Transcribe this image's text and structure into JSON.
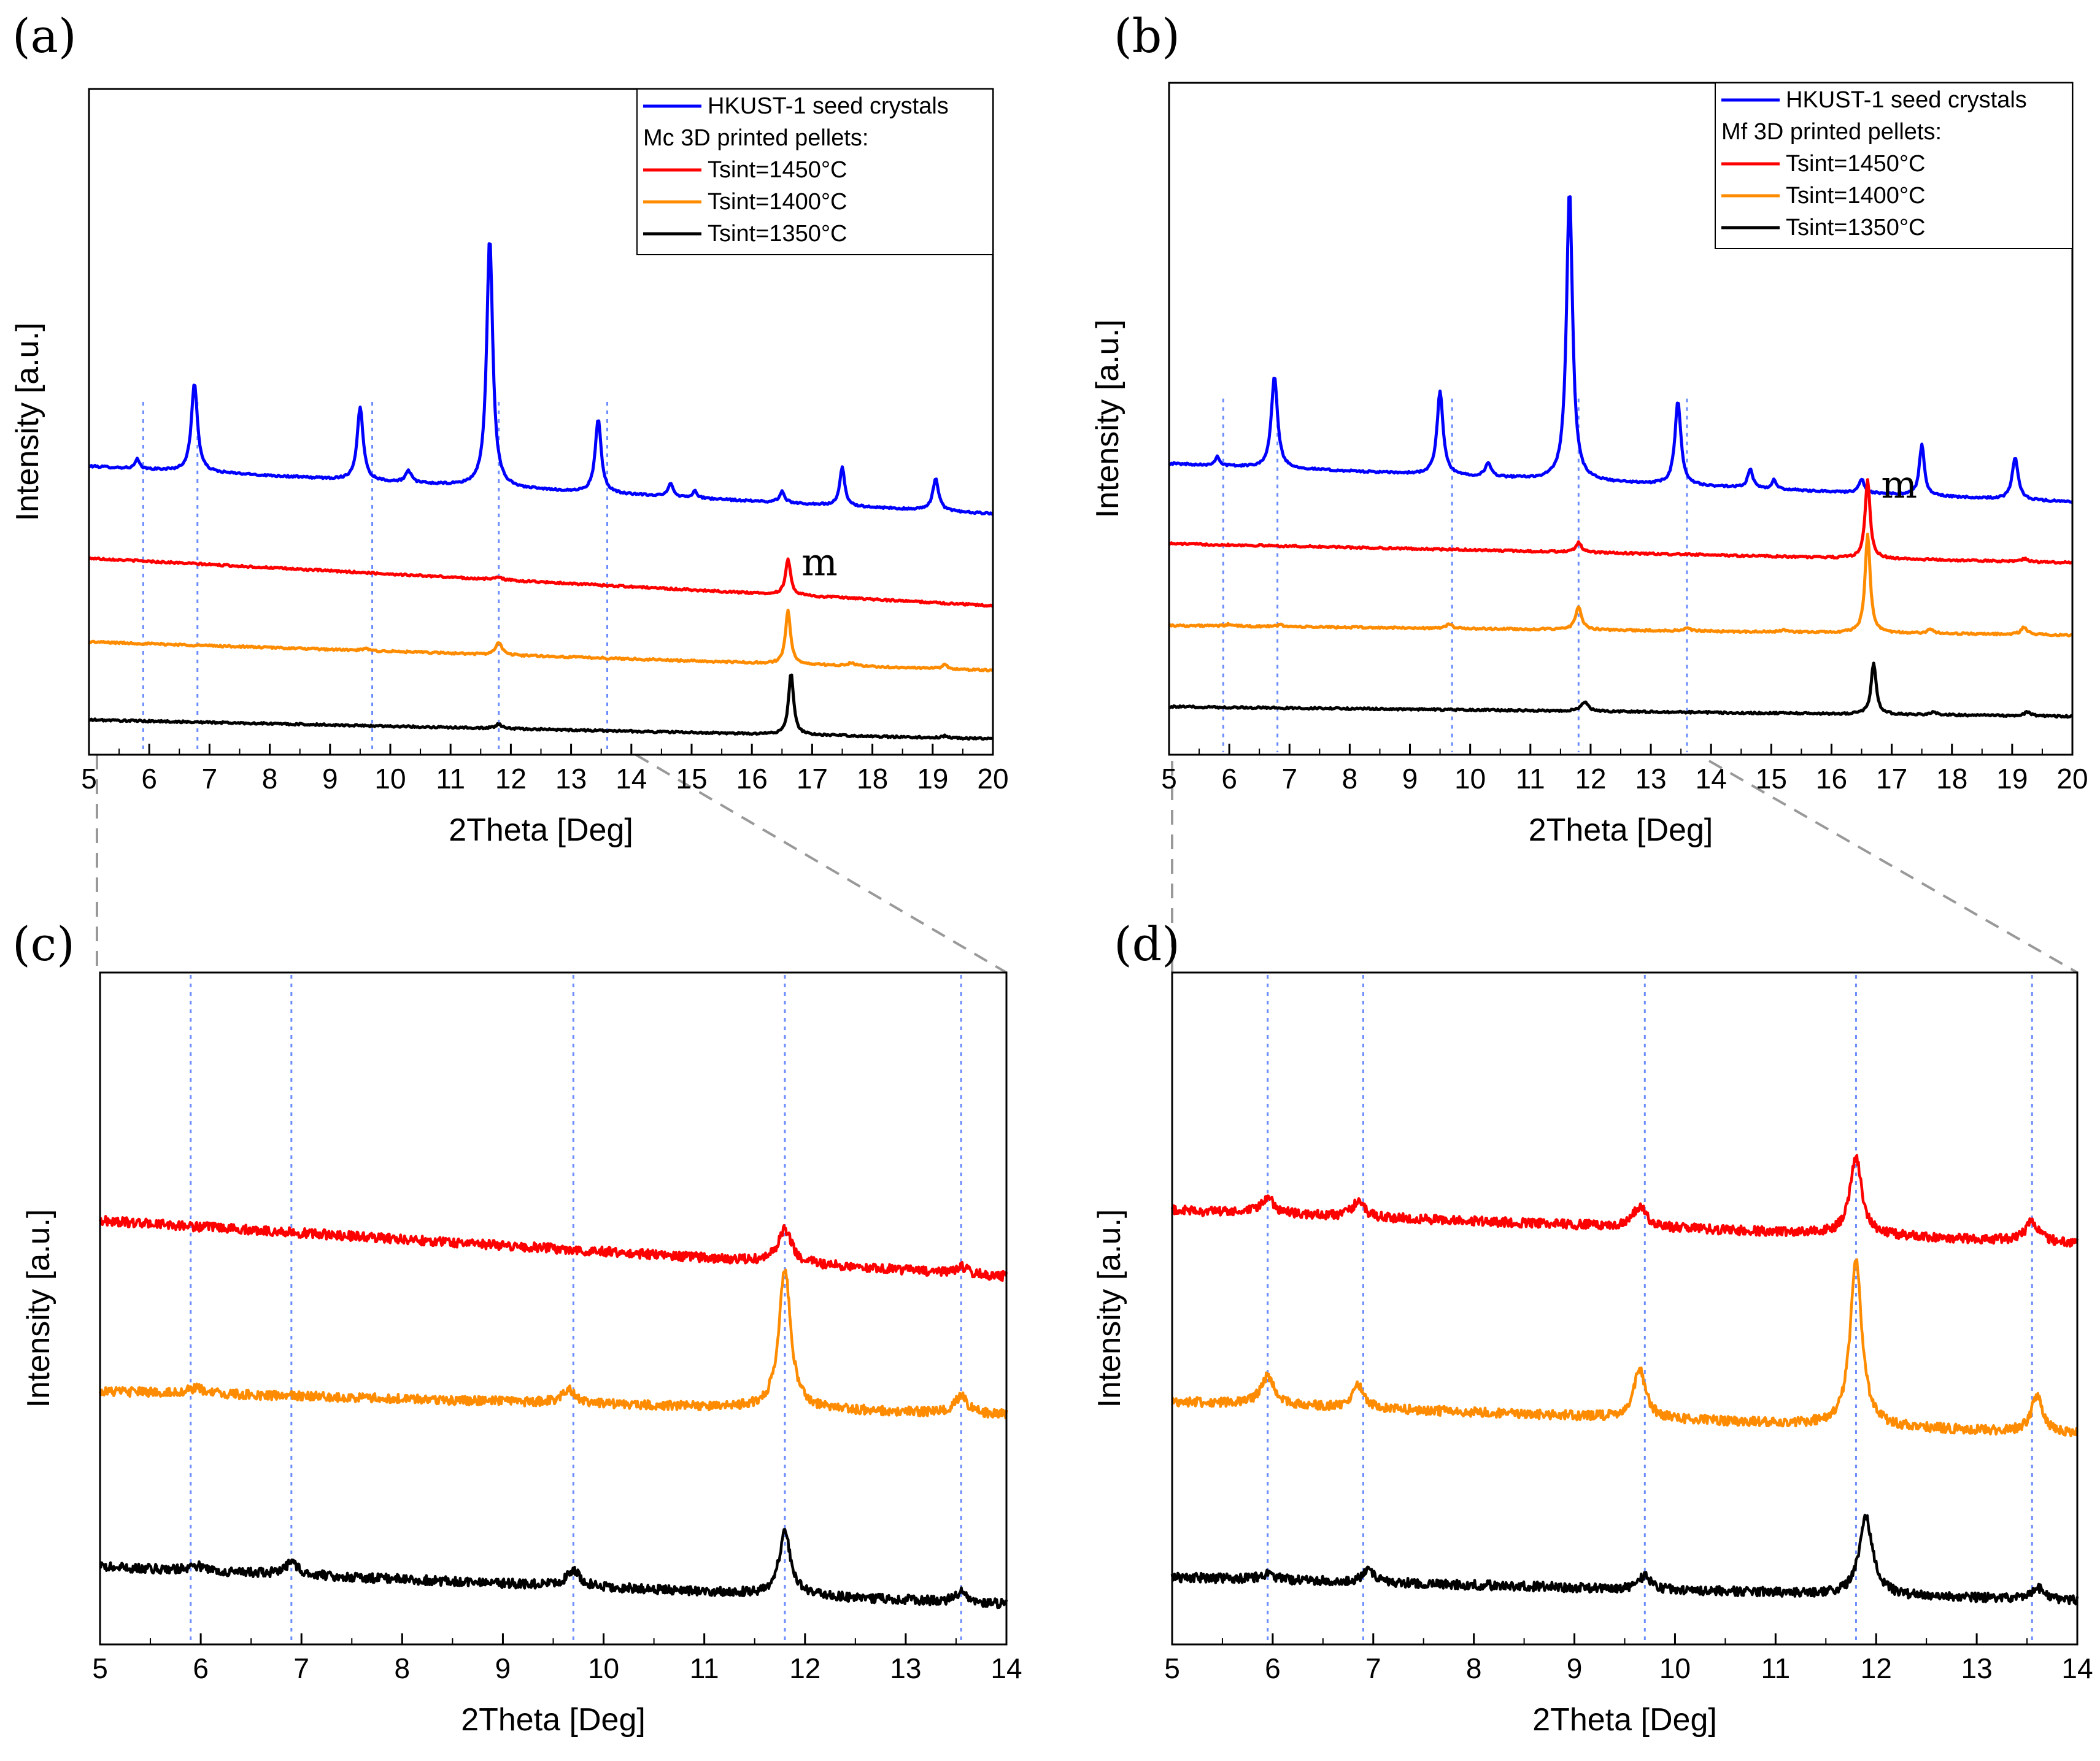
{
  "chart_data": [
    {
      "id": "a",
      "panel_label": "(a)",
      "type": "line",
      "xlabel": "2Theta [Deg]",
      "ylabel": "Intensity [a.u.]",
      "xlim": [
        5,
        20
      ],
      "xticks": [
        5,
        6,
        7,
        8,
        9,
        10,
        11,
        12,
        13,
        14,
        15,
        16,
        17,
        18,
        19,
        20
      ],
      "legend": {
        "position": "top-right",
        "entries": [
          {
            "kind": "line",
            "text": "HKUST-1 seed crystals",
            "color": "#0000ff"
          },
          {
            "kind": "text",
            "text": "Mc 3D printed pellets:"
          },
          {
            "kind": "line",
            "text": "Tsint=1450°C",
            "color": "#ff0000"
          },
          {
            "kind": "line",
            "text": "Tsint=1400°C",
            "color": "#ff8c00"
          },
          {
            "kind": "line",
            "text": "Tsint=1350°C",
            "color": "#000000"
          }
        ]
      },
      "reference_lines": [
        5.9,
        6.8,
        9.7,
        11.8,
        13.6
      ],
      "annotation": {
        "text": "m",
        "x": 16.6,
        "series": "Tsint=1450°C"
      },
      "series": [
        {
          "name": "HKUST-1 seed crystals",
          "color": "#0000ff",
          "baseline": 4.55,
          "slope": -0.05,
          "peaks": [
            [
              5.8,
              0.15,
              0.04
            ],
            [
              6.75,
              1.4,
              0.06
            ],
            [
              9.5,
              1.15,
              0.06
            ],
            [
              10.3,
              0.18,
              0.06
            ],
            [
              11.65,
              3.95,
              0.06
            ],
            [
              13.45,
              1.15,
              0.06
            ],
            [
              14.65,
              0.22,
              0.05
            ],
            [
              15.05,
              0.12,
              0.04
            ],
            [
              16.5,
              0.18,
              0.05
            ],
            [
              17.5,
              0.6,
              0.05
            ],
            [
              19.05,
              0.5,
              0.06
            ]
          ]
        },
        {
          "name": "Tsint=1450°C",
          "color": "#ff0000",
          "baseline": 3.1,
          "slope": -0.05,
          "peaks": [
            [
              11.8,
              0.05,
              0.06
            ],
            [
              16.6,
              0.58,
              0.05
            ]
          ]
        },
        {
          "name": "Tsint=1400°C",
          "color": "#ff8c00",
          "baseline": 1.78,
          "slope": -0.03,
          "peaks": [
            [
              9.6,
              0.03,
              0.06
            ],
            [
              11.8,
              0.2,
              0.06
            ],
            [
              16.6,
              0.85,
              0.05
            ],
            [
              17.65,
              0.05,
              0.06
            ],
            [
              19.2,
              0.06,
              0.06
            ]
          ]
        },
        {
          "name": "Tsint=1350°C",
          "color": "#000000",
          "baseline": 0.55,
          "slope": -0.02,
          "peaks": [
            [
              11.8,
              0.07,
              0.06
            ],
            [
              16.65,
              0.97,
              0.05
            ],
            [
              19.2,
              0.03,
              0.06
            ]
          ]
        }
      ]
    },
    {
      "id": "b",
      "panel_label": "(b)",
      "type": "line",
      "xlabel": "2Theta [Deg]",
      "ylabel": "Intensity [a.u.]",
      "xlim": [
        5,
        20
      ],
      "xticks": [
        5,
        6,
        7,
        8,
        9,
        10,
        11,
        12,
        13,
        14,
        15,
        16,
        17,
        18,
        19,
        20
      ],
      "legend": {
        "position": "top-right",
        "entries": [
          {
            "kind": "line",
            "text": "HKUST-1 seed crystals",
            "color": "#0000ff"
          },
          {
            "kind": "text",
            "text": "Mf 3D printed pellets:"
          },
          {
            "kind": "line",
            "text": "Tsint=1450°C",
            "color": "#ff0000"
          },
          {
            "kind": "line",
            "text": "Tsint=1400°C",
            "color": "#ff8c00"
          },
          {
            "kind": "line",
            "text": "Tsint=1350°C",
            "color": "#000000"
          }
        ]
      },
      "reference_lines": [
        5.9,
        6.8,
        9.7,
        11.8,
        13.6
      ],
      "annotation": {
        "text": "m",
        "x": 16.6,
        "series": "Tsint=1450°C"
      },
      "series": [
        {
          "name": "HKUST-1 seed crystals",
          "color": "#0000ff",
          "baseline": 4.55,
          "slope": -0.04,
          "peaks": [
            [
              5.8,
              0.15,
              0.04
            ],
            [
              6.75,
              1.45,
              0.06
            ],
            [
              9.5,
              1.3,
              0.06
            ],
            [
              10.3,
              0.2,
              0.06
            ],
            [
              11.65,
              4.55,
              0.06
            ],
            [
              13.45,
              1.3,
              0.06
            ],
            [
              14.65,
              0.3,
              0.05
            ],
            [
              15.05,
              0.15,
              0.04
            ],
            [
              16.5,
              0.22,
              0.05
            ],
            [
              17.5,
              0.8,
              0.05
            ],
            [
              19.05,
              0.65,
              0.06
            ]
          ]
        },
        {
          "name": "Tsint=1450°C",
          "color": "#ff0000",
          "baseline": 3.3,
          "slope": -0.02,
          "peaks": [
            [
              11.8,
              0.15,
              0.06
            ],
            [
              16.6,
              1.22,
              0.05
            ],
            [
              19.2,
              0.05,
              0.06
            ]
          ]
        },
        {
          "name": "Tsint=1400°C",
          "color": "#ff8c00",
          "baseline": 2.02,
          "slope": -0.01,
          "peaks": [
            [
              6.0,
              0.03,
              0.06
            ],
            [
              6.85,
              0.03,
              0.06
            ],
            [
              9.65,
              0.07,
              0.06
            ],
            [
              11.8,
              0.37,
              0.06
            ],
            [
              13.6,
              0.05,
              0.06
            ],
            [
              15.2,
              0.03,
              0.06
            ],
            [
              16.6,
              1.55,
              0.05
            ],
            [
              17.65,
              0.07,
              0.06
            ],
            [
              19.2,
              0.12,
              0.06
            ]
          ]
        },
        {
          "name": "Tsint=1350°C",
          "color": "#000000",
          "baseline": 0.75,
          "slope": -0.01,
          "peaks": [
            [
              11.9,
              0.15,
              0.07
            ],
            [
              16.7,
              0.8,
              0.05
            ],
            [
              17.7,
              0.04,
              0.06
            ],
            [
              19.25,
              0.06,
              0.06
            ]
          ]
        }
      ]
    },
    {
      "id": "c",
      "panel_label": "(c)",
      "type": "line",
      "xlabel": "2Theta [Deg]",
      "ylabel": "Intensity [a.u.]",
      "xlim": [
        5,
        14
      ],
      "xticks": [
        5,
        6,
        7,
        8,
        9,
        10,
        11,
        12,
        13,
        14
      ],
      "reference_lines": [
        5.9,
        6.9,
        9.7,
        11.8,
        13.55
      ],
      "series": [
        {
          "name": "Tsint=1450°C",
          "color": "#ff0000",
          "baseline": 4.1,
          "slope": -0.06,
          "peaks": [
            [
              11.8,
              0.33,
              0.08
            ],
            [
              13.55,
              0.07,
              0.07
            ]
          ]
        },
        {
          "name": "Tsint=1400°C",
          "color": "#ff8c00",
          "baseline": 2.45,
          "slope": -0.025,
          "peaks": [
            [
              5.95,
              0.05,
              0.1
            ],
            [
              9.65,
              0.13,
              0.08
            ],
            [
              11.8,
              1.35,
              0.07
            ],
            [
              13.55,
              0.17,
              0.07
            ]
          ]
        },
        {
          "name": "Tsint=1350°C",
          "color": "#000000",
          "baseline": 0.75,
          "slope": -0.04,
          "peaks": [
            [
              5.95,
              0.05,
              0.1
            ],
            [
              6.9,
              0.12,
              0.08
            ],
            [
              9.7,
              0.16,
              0.08
            ],
            [
              11.8,
              0.6,
              0.07
            ],
            [
              13.55,
              0.1,
              0.07
            ]
          ]
        }
      ]
    },
    {
      "id": "d",
      "panel_label": "(d)",
      "type": "line",
      "xlabel": "2Theta [Deg]",
      "ylabel": "Intensity [a.u.]",
      "xlim": [
        5,
        14
      ],
      "xticks": [
        5,
        6,
        7,
        8,
        9,
        10,
        11,
        12,
        13,
        14
      ],
      "reference_lines": [
        5.95,
        6.9,
        9.7,
        11.8,
        13.55
      ],
      "series": [
        {
          "name": "Tsint=1450°C",
          "color": "#ff0000",
          "baseline": 4.2,
          "slope": -0.035,
          "peaks": [
            [
              5.95,
              0.15,
              0.08
            ],
            [
              6.85,
              0.15,
              0.07
            ],
            [
              9.65,
              0.2,
              0.08
            ],
            [
              11.8,
              0.75,
              0.07
            ],
            [
              13.55,
              0.2,
              0.07
            ]
          ]
        },
        {
          "name": "Tsint=1400°C",
          "color": "#ff8c00",
          "baseline": 2.35,
          "slope": -0.035,
          "peaks": [
            [
              5.95,
              0.28,
              0.08
            ],
            [
              6.85,
              0.23,
              0.07
            ],
            [
              9.65,
              0.48,
              0.07
            ],
            [
              11.8,
              1.6,
              0.07
            ],
            [
              13.6,
              0.35,
              0.07
            ]
          ]
        },
        {
          "name": "Tsint=1350°C",
          "color": "#000000",
          "baseline": 0.65,
          "slope": -0.025,
          "peaks": [
            [
              5.95,
              0.06,
              0.08
            ],
            [
              6.95,
              0.12,
              0.07
            ],
            [
              9.7,
              0.13,
              0.07
            ],
            [
              11.9,
              0.75,
              0.08
            ],
            [
              13.6,
              0.12,
              0.07
            ]
          ]
        }
      ]
    }
  ]
}
